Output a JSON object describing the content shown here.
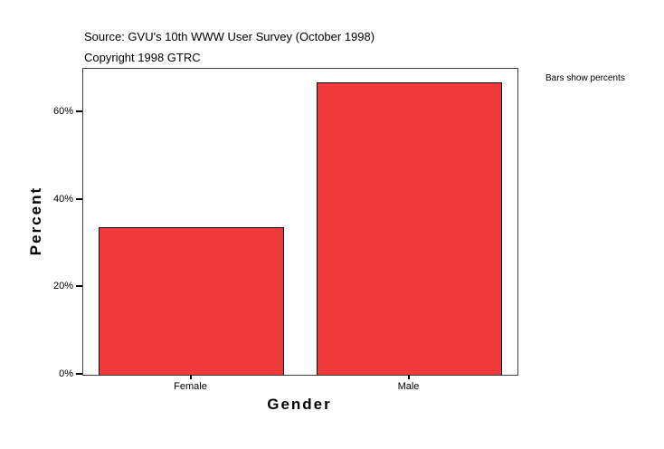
{
  "header": {
    "source_line": "Source: GVU's 10th WWW User Survey (October 1998)",
    "copyright_line": "Copyright 1998 GTRC"
  },
  "chart_data": {
    "type": "bar",
    "title": "",
    "xlabel": "Gender",
    "ylabel": "Percent",
    "categories": [
      "Female",
      "Male"
    ],
    "values": [
      33.7,
      66.8
    ],
    "value_unit": "percent",
    "ylim": [
      0,
      70
    ],
    "yticks": [
      0,
      20,
      40,
      60
    ],
    "ytick_labels": [
      "0%",
      "20%",
      "40%",
      "60%"
    ],
    "grid": false,
    "legend": "none",
    "annotation": "Bars show percents",
    "bar_color": "#ee3a3b",
    "bar_border_color": "#000000",
    "frame_color": "#3f3f3f"
  }
}
